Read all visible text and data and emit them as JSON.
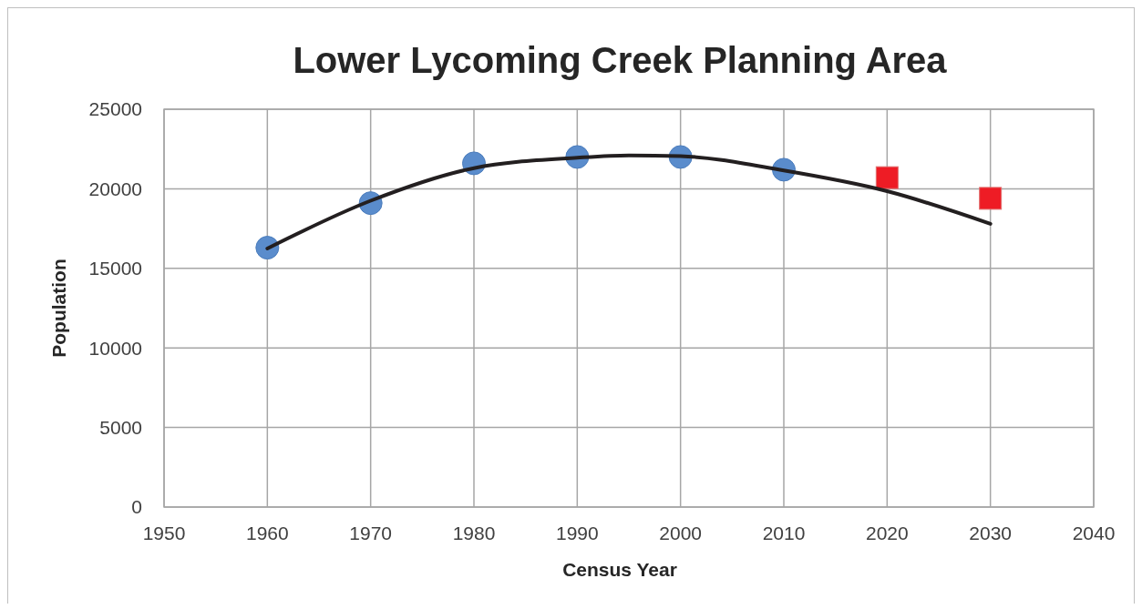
{
  "chart_data": {
    "type": "scatter",
    "title": "Lower Lycoming Creek Planning Area",
    "xlabel": "Census Year",
    "ylabel": "Population",
    "xlim": [
      1950,
      2040
    ],
    "xticks": [
      1950,
      1960,
      1970,
      1980,
      1990,
      2000,
      2010,
      2020,
      2030,
      2040
    ],
    "ylim": [
      0,
      25000
    ],
    "yticks": [
      0,
      5000,
      10000,
      15000,
      20000,
      25000
    ],
    "grid": true,
    "series": [
      {
        "marker": "circle",
        "color": "#5a8ccc",
        "x": [
          1960,
          1970,
          1980,
          1990,
          2000,
          2010
        ],
        "values": [
          16300,
          19100,
          21600,
          22000,
          22000,
          21200
        ]
      },
      {
        "marker": "square",
        "color": "#ee1c25",
        "x": [
          2020,
          2030
        ],
        "values": [
          20700,
          19400
        ]
      },
      {
        "type": "line",
        "marker": "none",
        "color": "#231f20",
        "x": [
          1960,
          1970,
          1980,
          1990,
          1995,
          2000,
          2010,
          2020,
          2030
        ],
        "values": [
          16250,
          19250,
          21300,
          21950,
          22100,
          22050,
          21150,
          19850,
          17800
        ]
      }
    ]
  }
}
